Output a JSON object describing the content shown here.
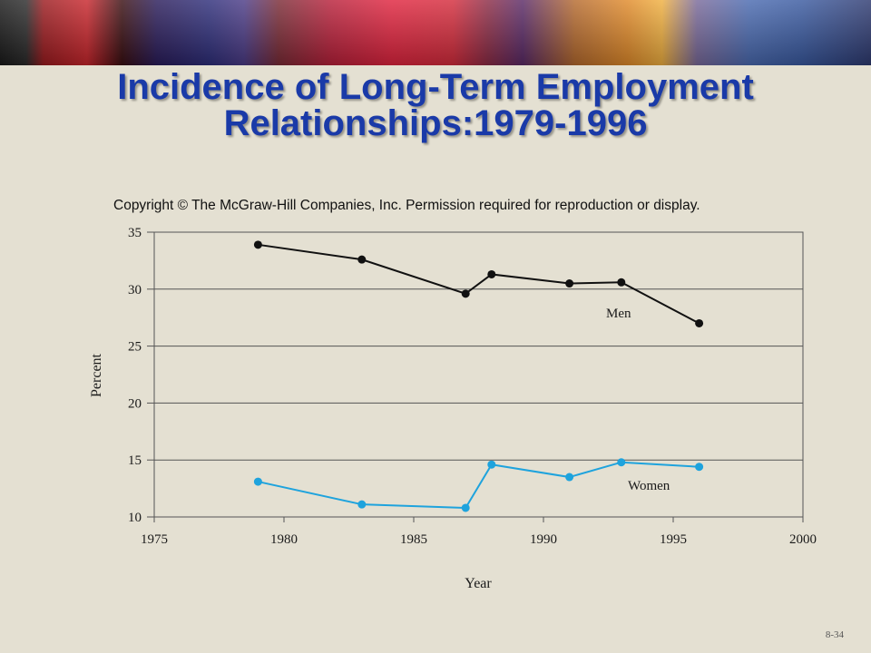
{
  "slide": {
    "title_line1": "Incidence of Long-Term Employment",
    "title_line2": "Relationships:1979-1996",
    "copyright": "Copyright © The McGraw-Hill Companies, Inc. Permission required for reproduction or display.",
    "page_number": "8-34"
  },
  "chart_data": {
    "type": "line",
    "title": "Incidence of Long-Term Employment Relationships:1979-1996",
    "xlabel": "Year",
    "ylabel": "Percent",
    "xlim": [
      1975,
      2000
    ],
    "ylim": [
      10,
      35
    ],
    "xticks": [
      1975,
      1980,
      1985,
      1990,
      1995,
      2000
    ],
    "yticks": [
      10,
      15,
      20,
      25,
      30,
      35
    ],
    "grid": "horizontal",
    "series": [
      {
        "name": "Men",
        "color": "#111111",
        "x": [
          1979,
          1983,
          1987,
          1988,
          1991,
          1993,
          1996
        ],
        "y": [
          33.9,
          32.6,
          29.6,
          31.3,
          30.5,
          30.6,
          27.0
        ]
      },
      {
        "name": "Women",
        "color": "#1ea3dd",
        "x": [
          1979,
          1983,
          1987,
          1988,
          1991,
          1993,
          1996
        ],
        "y": [
          13.1,
          11.1,
          10.8,
          14.6,
          13.5,
          14.8,
          14.4
        ]
      }
    ]
  }
}
